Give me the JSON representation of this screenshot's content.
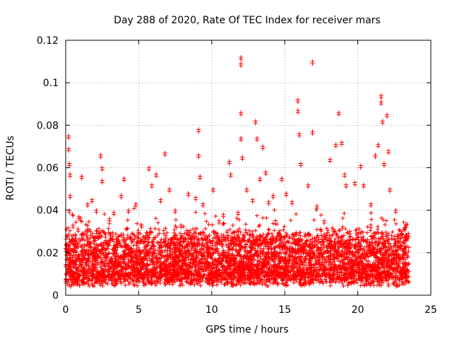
{
  "chart_data": {
    "type": "scatter",
    "title": "Day 288 of 2020, Rate Of TEC Index for receiver mars",
    "xlabel": "GPS time / hours",
    "ylabel": "ROTI / TECUs",
    "xlim": [
      0,
      25
    ],
    "ylim": [
      0,
      0.12
    ],
    "xticks": [
      0,
      5,
      10,
      15,
      20,
      25
    ],
    "yticks": [
      0,
      0.02,
      0.04,
      0.06,
      0.08,
      0.1,
      0.12
    ],
    "xtick_labels": [
      "0",
      "5",
      "10",
      "15",
      "20",
      "25"
    ],
    "ytick_labels": [
      "0",
      "0.02",
      "0.04",
      "0.06",
      "0.08",
      "0.1",
      "0.12"
    ],
    "grid": true,
    "marker": "+",
    "color": "#ff0000",
    "series": [
      {
        "name": "ROTI",
        "description_of_density": "dense band between ~0.005 and ~0.03 across 0-23.5 h",
        "points": [
          [
            0.2,
            0.075
          ],
          [
            0.2,
            0.069
          ],
          [
            0.25,
            0.062
          ],
          [
            0.3,
            0.057
          ],
          [
            0.3,
            0.047
          ],
          [
            0.25,
            0.04
          ],
          [
            0.5,
            0.033
          ],
          [
            0.9,
            0.037
          ],
          [
            1.1,
            0.056
          ],
          [
            1.5,
            0.043
          ],
          [
            1.8,
            0.045
          ],
          [
            2.1,
            0.04
          ],
          [
            2.4,
            0.066
          ],
          [
            2.5,
            0.06
          ],
          [
            2.5,
            0.054
          ],
          [
            3.0,
            0.036
          ],
          [
            3.3,
            0.039
          ],
          [
            3.8,
            0.047
          ],
          [
            4.0,
            0.055
          ],
          [
            4.3,
            0.04
          ],
          [
            4.8,
            0.043
          ],
          [
            5.2,
            0.033
          ],
          [
            5.7,
            0.06
          ],
          [
            5.9,
            0.052
          ],
          [
            6.2,
            0.057
          ],
          [
            6.5,
            0.045
          ],
          [
            6.8,
            0.067
          ],
          [
            7.1,
            0.05
          ],
          [
            7.5,
            0.04
          ],
          [
            7.9,
            0.033
          ],
          [
            8.4,
            0.048
          ],
          [
            8.9,
            0.046
          ],
          [
            9.1,
            0.078
          ],
          [
            9.1,
            0.066
          ],
          [
            9.2,
            0.056
          ],
          [
            9.4,
            0.043
          ],
          [
            10.1,
            0.05
          ],
          [
            10.5,
            0.035
          ],
          [
            10.8,
            0.038
          ],
          [
            11.2,
            0.063
          ],
          [
            11.3,
            0.057
          ],
          [
            11.8,
            0.039
          ],
          [
            12.0,
            0.112
          ],
          [
            12.0,
            0.109
          ],
          [
            12.0,
            0.086
          ],
          [
            12.0,
            0.074
          ],
          [
            12.1,
            0.065
          ],
          [
            12.4,
            0.05
          ],
          [
            12.8,
            0.045
          ],
          [
            13.0,
            0.082
          ],
          [
            13.1,
            0.074
          ],
          [
            13.3,
            0.055
          ],
          [
            13.5,
            0.07
          ],
          [
            13.7,
            0.058
          ],
          [
            13.9,
            0.044
          ],
          [
            14.2,
            0.047
          ],
          [
            14.8,
            0.055
          ],
          [
            15.1,
            0.048
          ],
          [
            15.5,
            0.044
          ],
          [
            15.9,
            0.092
          ],
          [
            15.9,
            0.087
          ],
          [
            16.0,
            0.076
          ],
          [
            16.1,
            0.062
          ],
          [
            16.6,
            0.052
          ],
          [
            16.9,
            0.11
          ],
          [
            16.9,
            0.077
          ],
          [
            17.2,
            0.042
          ],
          [
            17.7,
            0.035
          ],
          [
            18.1,
            0.064
          ],
          [
            18.5,
            0.071
          ],
          [
            18.7,
            0.086
          ],
          [
            18.9,
            0.072
          ],
          [
            19.1,
            0.057
          ],
          [
            19.2,
            0.052
          ],
          [
            19.8,
            0.053
          ],
          [
            20.2,
            0.061
          ],
          [
            20.4,
            0.052
          ],
          [
            20.9,
            0.043
          ],
          [
            21.2,
            0.066
          ],
          [
            21.4,
            0.071
          ],
          [
            21.6,
            0.094
          ],
          [
            21.6,
            0.091
          ],
          [
            21.7,
            0.082
          ],
          [
            21.8,
            0.062
          ],
          [
            22.0,
            0.085
          ],
          [
            22.1,
            0.068
          ],
          [
            22.2,
            0.05
          ],
          [
            22.6,
            0.04
          ],
          [
            23.0,
            0.03
          ],
          [
            23.3,
            0.033
          ]
        ]
      }
    ]
  }
}
